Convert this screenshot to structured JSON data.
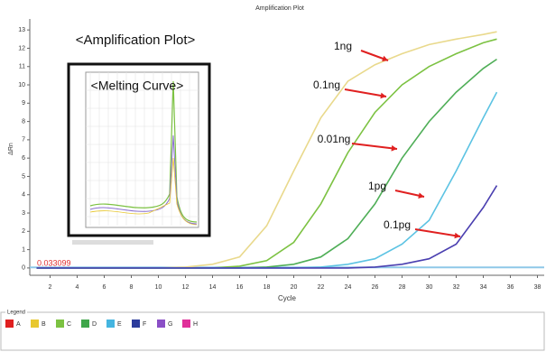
{
  "chart_data": {
    "type": "line",
    "title": "Amplification Plot",
    "xlabel": "Cycle",
    "ylabel": "ΔRn",
    "x": [
      1,
      4,
      8,
      10,
      12,
      14,
      16,
      18,
      20,
      22,
      24,
      26,
      28,
      30,
      32,
      34,
      35
    ],
    "series": [
      {
        "name": "1ng",
        "color": "#e9d98c",
        "values": [
          0,
          0,
          0,
          0,
          0.05,
          0.2,
          0.6,
          2.3,
          5.3,
          8.2,
          10.2,
          11.1,
          11.7,
          12.2,
          12.5,
          12.75,
          12.9
        ]
      },
      {
        "name": "0.1ng",
        "color": "#7cc242",
        "values": [
          0,
          0,
          0,
          0,
          0,
          0,
          0.1,
          0.4,
          1.4,
          3.5,
          6.3,
          8.5,
          10.0,
          11.0,
          11.7,
          12.3,
          12.5
        ]
      },
      {
        "name": "0.01ng",
        "color": "#4fae57",
        "values": [
          0,
          0,
          0,
          0,
          0,
          0,
          0,
          0.05,
          0.2,
          0.6,
          1.6,
          3.5,
          6.0,
          8.0,
          9.6,
          10.9,
          11.4
        ]
      },
      {
        "name": "1pg",
        "color": "#5cc3e3",
        "values": [
          0,
          0,
          0,
          0,
          0,
          0,
          0,
          0,
          0,
          0.05,
          0.2,
          0.5,
          1.3,
          2.6,
          5.3,
          8.2,
          9.6
        ]
      },
      {
        "name": "0.1pg",
        "color": "#4a3fb0",
        "values": [
          0,
          0,
          0,
          0,
          0,
          0,
          0,
          0,
          0,
          0,
          0,
          0.05,
          0.2,
          0.5,
          1.3,
          3.3,
          4.5
        ]
      }
    ],
    "xlim": [
      0.5,
      38.5
    ],
    "xticks": [
      2,
      4,
      6,
      8,
      10,
      12,
      14,
      16,
      18,
      20,
      22,
      24,
      26,
      28,
      30,
      32,
      34,
      36,
      38
    ],
    "ylim": [
      -0.4,
      13.6
    ],
    "yticks": [
      0,
      1,
      2,
      3,
      4,
      5,
      6,
      7,
      8,
      9,
      10,
      11,
      12,
      13
    ],
    "threshold": 0.033099,
    "threshold_color": "#e03030",
    "threshold_line_color": "#8fc8e8",
    "annotations": [
      "<Amplification Plot>",
      "<Melting Curve>"
    ],
    "arrow_color": "#e02020"
  },
  "legend": {
    "title": "Legend",
    "items": [
      {
        "label": "A",
        "color": "#e02020"
      },
      {
        "label": "B",
        "color": "#e8c830"
      },
      {
        "label": "C",
        "color": "#7cc242"
      },
      {
        "label": "D",
        "color": "#3fa64a"
      },
      {
        "label": "E",
        "color": "#45b5e0"
      },
      {
        "label": "F",
        "color": "#2c3c9c"
      },
      {
        "label": "G",
        "color": "#8a4fc6"
      },
      {
        "label": "H",
        "color": "#e0309a"
      }
    ]
  }
}
